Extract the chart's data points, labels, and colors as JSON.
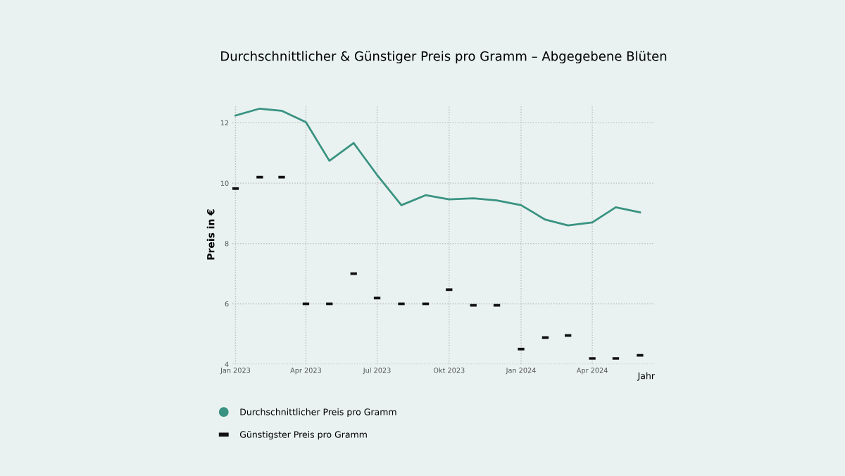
{
  "chart_data": {
    "type": "line",
    "title": "Durchschnittlicher & Günstiger Preis pro Gramm – Abgegebene Blüten",
    "xlabel": "Jahr",
    "ylabel": "Preis in €",
    "x": [
      "2023-01",
      "2023-02",
      "2023-03",
      "2023-04",
      "2023-05",
      "2023-06",
      "2023-07",
      "2023-08",
      "2023-09",
      "2023-10",
      "2023-11",
      "2023-12",
      "2024-01",
      "2024-02",
      "2024-03",
      "2024-04",
      "2024-05",
      "2024-06"
    ],
    "series": [
      {
        "name": "Durchschnittlicher Preis pro Gramm",
        "color": "#3a9382",
        "values": [
          12.24,
          12.47,
          12.4,
          12.02,
          10.74,
          11.33,
          10.27,
          9.27,
          9.6,
          9.46,
          9.5,
          9.43,
          9.27,
          8.79,
          8.6,
          8.7,
          9.2,
          9.03
        ]
      },
      {
        "name": "Günstigster Preis pro Gramm",
        "type": "scatter",
        "color": "#111111",
        "values": [
          9.82,
          10.2,
          10.2,
          6.0,
          6.0,
          7.0,
          6.19,
          6.0,
          6.0,
          6.47,
          5.95,
          5.95,
          4.5,
          4.88,
          4.95,
          4.19,
          4.19,
          4.29
        ]
      }
    ],
    "xlim": [
      "2022-12-28",
      "2024-06-20"
    ],
    "ylim": [
      4,
      12.6
    ],
    "xticks": [
      {
        "value": "2023-01",
        "label": "Jan 2023"
      },
      {
        "value": "2023-04",
        "label": "Apr 2023"
      },
      {
        "value": "2023-07",
        "label": "Jul 2023"
      },
      {
        "value": "2023-10",
        "label": "Okt 2023"
      },
      {
        "value": "2024-01",
        "label": "Jan 2024"
      },
      {
        "value": "2024-04",
        "label": "Apr 2024"
      }
    ],
    "yticks": [
      4,
      6,
      8,
      10,
      12
    ],
    "grid": true,
    "legend": "bottom left"
  }
}
